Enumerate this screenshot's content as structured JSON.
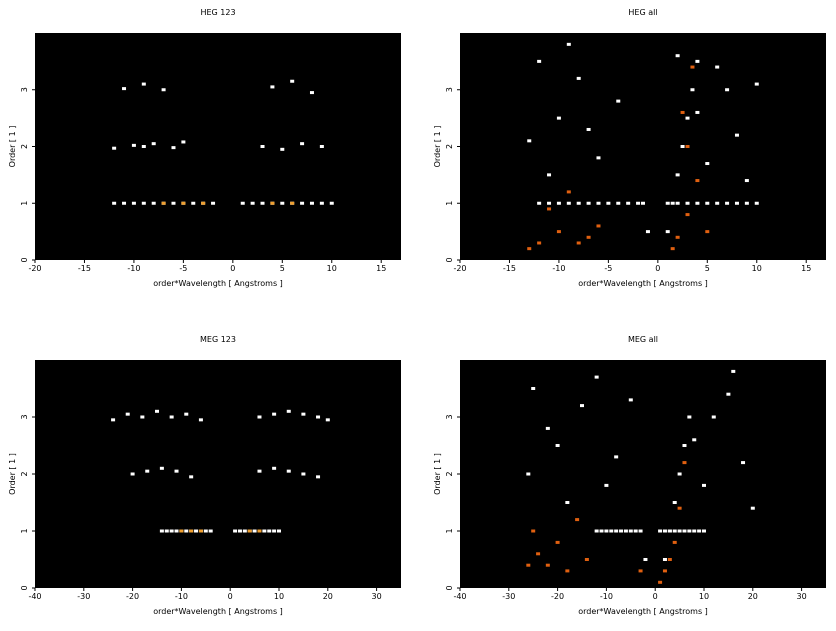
{
  "chart_data": [
    {
      "type": "scatter",
      "title": "HEG 123",
      "xlabel": "order*Wavelength [ Angstroms ]",
      "ylabel": "Order [ 1 ]",
      "background": "#000000",
      "xlim": [
        -20,
        17
      ],
      "ylim": [
        0,
        4
      ],
      "xticks": [
        -20,
        -15,
        -10,
        -5,
        0,
        5,
        10,
        15
      ],
      "yticks": [
        0,
        1,
        2,
        3
      ],
      "series": [
        {
          "color": "#ffffff",
          "x": [
            -12,
            -11,
            -10,
            -9,
            -8,
            -7,
            -6,
            -5,
            -4,
            -3,
            -2,
            1,
            2,
            3,
            4,
            5,
            6,
            7,
            8,
            9,
            10,
            -12,
            -10,
            -9,
            -8,
            -6,
            -5,
            3,
            5,
            7,
            9,
            -11,
            -9,
            -7,
            4,
            6,
            8
          ],
          "y": [
            1,
            1,
            1,
            1,
            1,
            1,
            1,
            1,
            1,
            1,
            1,
            1,
            1,
            1,
            1,
            1,
            1,
            1,
            1,
            1,
            1,
            1.97,
            2.02,
            2,
            2.05,
            1.98,
            2.08,
            2,
            1.95,
            2.05,
            2,
            3.02,
            3.1,
            3,
            3.05,
            3.15,
            2.95
          ]
        },
        {
          "color": "#f0a030",
          "x": [
            -7,
            -5,
            -3,
            4,
            6
          ],
          "y": [
            1,
            1,
            1,
            1,
            1
          ]
        }
      ]
    },
    {
      "type": "scatter",
      "title": "HEG all",
      "xlabel": "order*Wavelength [ Angstroms ]",
      "ylabel": "Order [ 1 ]",
      "background": "#000000",
      "xlim": [
        -20,
        17
      ],
      "ylim": [
        0,
        4
      ],
      "xticks": [
        -20,
        -15,
        -10,
        -5,
        0,
        5,
        10,
        15
      ],
      "yticks": [
        0,
        1,
        2,
        3
      ],
      "series": [
        {
          "color": "#ffffff",
          "x": [
            -12,
            -11,
            -10,
            -9,
            -8,
            -7,
            -6,
            -5,
            -4,
            -3,
            -2,
            1,
            2,
            3,
            4,
            5,
            6,
            7,
            8,
            9,
            10,
            -12,
            -10,
            -8,
            -6,
            -4,
            -11,
            6,
            8,
            9,
            7,
            4,
            2,
            -9,
            -13,
            -7,
            5,
            10,
            1,
            1.5,
            2,
            2.5,
            3,
            3.5,
            4,
            -1,
            -1.5
          ],
          "y": [
            1,
            1,
            1,
            1,
            1,
            1,
            1,
            1,
            1,
            1,
            1,
            1,
            1,
            1,
            1,
            1,
            1,
            1,
            1,
            1,
            1,
            3.5,
            2.5,
            3.2,
            1.8,
            2.8,
            1.5,
            3.4,
            2.2,
            1.4,
            3,
            2.6,
            3.6,
            3.8,
            2.1,
            2.3,
            1.7,
            3.1,
            0.5,
            1,
            1.5,
            2,
            2.5,
            3,
            3.5,
            0.5,
            1
          ]
        },
        {
          "color": "#e06010",
          "x": [
            -12,
            -10,
            -8,
            -11,
            -9,
            -6,
            2,
            3,
            4,
            3,
            2.5,
            3.5,
            5,
            -13,
            -7,
            1.5
          ],
          "y": [
            0.3,
            0.5,
            0.3,
            0.9,
            1.2,
            0.6,
            0.4,
            0.8,
            1.4,
            2,
            2.6,
            3.4,
            0.5,
            0.2,
            0.4,
            0.2
          ]
        }
      ]
    },
    {
      "type": "scatter",
      "title": "MEG 123",
      "xlabel": "order*Wavelength [ Angstroms ]",
      "ylabel": "Order [ 1 ]",
      "background": "#000000",
      "xlim": [
        -40,
        35
      ],
      "ylim": [
        0,
        4
      ],
      "xticks": [
        -40,
        -30,
        -20,
        -10,
        0,
        10,
        20,
        30
      ],
      "yticks": [
        0,
        1,
        2,
        3
      ],
      "series": [
        {
          "color": "#ffffff",
          "x": [
            -14,
            -13,
            -12,
            -11,
            -10,
            -9,
            -8,
            -7,
            -6,
            -5,
            -4,
            1,
            2,
            3,
            4,
            5,
            6,
            7,
            8,
            9,
            10,
            -20,
            -17,
            -14,
            -11,
            -8,
            6,
            9,
            12,
            15,
            18,
            -24,
            -21,
            -18,
            -15,
            -12,
            -9,
            -6,
            6,
            9,
            12,
            15,
            18,
            20
          ],
          "y": [
            1,
            1,
            1,
            1,
            1,
            1,
            1,
            1,
            1,
            1,
            1,
            1,
            1,
            1,
            1,
            1,
            1,
            1,
            1,
            1,
            1,
            2,
            2.05,
            2.1,
            2.05,
            1.95,
            2.05,
            2.1,
            2.05,
            2,
            1.95,
            2.95,
            3.05,
            3,
            3.1,
            3,
            3.05,
            2.95,
            3,
            3.05,
            3.1,
            3.05,
            3,
            2.95
          ]
        },
        {
          "color": "#f0a030",
          "x": [
            -10,
            -8,
            -6,
            4,
            6
          ],
          "y": [
            1,
            1,
            1,
            1,
            1
          ]
        }
      ]
    },
    {
      "type": "scatter",
      "title": "MEG all",
      "xlabel": "order*Wavelength [ Angstroms ]",
      "ylabel": "Order [ 1 ]",
      "background": "#000000",
      "xlim": [
        -40,
        35
      ],
      "ylim": [
        0,
        4
      ],
      "xticks": [
        -40,
        -30,
        -20,
        -10,
        0,
        10,
        20,
        30
      ],
      "yticks": [
        0,
        1,
        2,
        3
      ],
      "series": [
        {
          "color": "#ffffff",
          "x": [
            -12,
            -11,
            -10,
            -9,
            -8,
            -7,
            -6,
            -5,
            -4,
            1,
            2,
            3,
            4,
            5,
            6,
            7,
            8,
            9,
            10,
            -25,
            -20,
            -15,
            -10,
            -22,
            -18,
            -26,
            -12,
            15,
            18,
            20,
            12,
            8,
            16,
            -8,
            -5,
            10,
            2,
            3,
            4,
            5,
            6,
            7,
            -2,
            -3
          ],
          "y": [
            1,
            1,
            1,
            1,
            1,
            1,
            1,
            1,
            1,
            1,
            1,
            1,
            1,
            1,
            1,
            1,
            1,
            1,
            1,
            3.5,
            2.5,
            3.2,
            1.8,
            2.8,
            1.5,
            2,
            3.7,
            3.4,
            2.2,
            1.4,
            3,
            2.6,
            3.8,
            2.3,
            3.3,
            1.8,
            0.5,
            1,
            1.5,
            2,
            2.5,
            3,
            0.5,
            1
          ]
        },
        {
          "color": "#e06010",
          "x": [
            -26,
            -24,
            -22,
            -20,
            -18,
            -25,
            -16,
            -14,
            2,
            4,
            5,
            6,
            3,
            -3,
            1
          ],
          "y": [
            0.4,
            0.6,
            0.4,
            0.8,
            0.3,
            1,
            1.2,
            0.5,
            0.3,
            0.8,
            1.4,
            2.2,
            0.5,
            0.3,
            0.1
          ]
        }
      ]
    }
  ]
}
